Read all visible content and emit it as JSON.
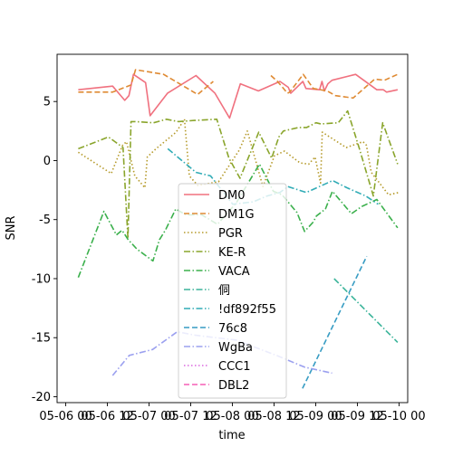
{
  "chart_data": {
    "type": "line",
    "title": "",
    "xlabel": "time",
    "ylabel": "SNR",
    "x_tick_labels": [
      "05-06 00",
      "05-06 12",
      "05-07 00",
      "05-07 12",
      "05-08 00",
      "05-08 12",
      "05-09 00",
      "05-09 12",
      "05-10 00"
    ],
    "x_tick_values": [
      0,
      12,
      24,
      36,
      48,
      60,
      72,
      84,
      96
    ],
    "y_tick_labels": [
      "-20",
      "-15",
      "-10",
      "-5",
      "0",
      "5"
    ],
    "y_tick_values": [
      -20,
      -15,
      -10,
      -5,
      0,
      5
    ],
    "xlim": [
      -2.5,
      98.5
    ],
    "ylim": [
      -20.5,
      9.0
    ],
    "x_unit": "hours since 05-06 00",
    "legend_position": "lower center",
    "series": [
      {
        "name": "DM0",
        "color": "#f0717f",
        "dash": "solid",
        "x": [
          3.6,
          13.5,
          17.0,
          18.2,
          19.5,
          23.0,
          24.3,
          29.3,
          37.5,
          43.0,
          47.2,
          50.3,
          55.5,
          61.7,
          64.1,
          64.8,
          68.3,
          69.2,
          73.1,
          73.8,
          74.5,
          75.5,
          76.7,
          83.5,
          89.6,
          91.5,
          92.4,
          95.6
        ],
        "y": [
          6.0,
          6.3,
          5.1,
          5.5,
          7.3,
          6.6,
          3.8,
          5.7,
          7.2,
          5.7,
          3.6,
          6.5,
          5.9,
          6.7,
          6.2,
          5.7,
          6.7,
          6.1,
          6.0,
          6.7,
          5.9,
          6.5,
          6.8,
          7.3,
          6.0,
          6.0,
          5.8,
          6.0
        ]
      },
      {
        "name": "DM1G",
        "color": "#df8a33",
        "dash": "dash",
        "x": [
          3.6,
          13.5,
          18.8,
          20.1,
          28.2,
          38.0,
          42.5,
          59.1,
          61.0,
          63.9,
          64.5,
          68.4,
          71.3,
          75.3,
          77.7,
          82.8,
          89.0,
          91.8,
          95.6
        ],
        "y": [
          5.8,
          5.8,
          6.4,
          7.7,
          7.3,
          5.6,
          6.7,
          7.2,
          6.7,
          5.7,
          5.8,
          7.3,
          6.1,
          5.9,
          5.5,
          5.3,
          6.9,
          6.8,
          7.3
        ],
        "segments": [
          [
            0,
            6
          ],
          [
            7,
            18
          ]
        ]
      },
      {
        "name": "PGR",
        "color": "#b59a2a",
        "dash": "dot",
        "x": [
          3.6,
          13.1,
          15.0,
          16.4,
          17.5,
          19.9,
          22.8,
          23.5,
          26.0,
          31.8,
          34.2,
          35.6,
          38.0,
          44.0,
          50.0,
          52.3,
          56.8,
          60.1,
          63.0,
          67.5,
          70.0,
          71.8,
          73.4,
          73.9,
          80.8,
          85.6,
          86.6,
          88.0,
          93.0,
          96.0
        ],
        "y": [
          0.7,
          -1.1,
          0.3,
          1.3,
          1.6,
          -1.3,
          -2.3,
          0.3,
          1.0,
          2.4,
          3.5,
          -1.3,
          -2.1,
          -1.8,
          0.9,
          2.5,
          -2.2,
          0.4,
          0.8,
          -0.2,
          -0.3,
          0.3,
          -1.9,
          2.4,
          1.1,
          1.6,
          1.3,
          -1.0,
          -2.9,
          -2.7
        ]
      },
      {
        "name": "KE-R",
        "color": "#8aa52c",
        "dash": "dashdot",
        "x": [
          3.6,
          12.3,
          16.5,
          17.9,
          18.8,
          19.9,
          25.3,
          29.0,
          32.4,
          37.1,
          43.5,
          47.0,
          50.2,
          55.6,
          59.3,
          61.4,
          62.7,
          67.1,
          69.4,
          72.1,
          73.5,
          78.5,
          81.2,
          84.6,
          88.6,
          91.3,
          95.6
        ],
        "y": [
          1.0,
          2.0,
          1.1,
          -6.6,
          3.3,
          3.3,
          3.2,
          3.5,
          3.3,
          3.4,
          3.5,
          0.2,
          -1.5,
          2.4,
          0.2,
          2.0,
          2.5,
          2.8,
          2.8,
          3.2,
          3.1,
          3.2,
          4.2,
          1.0,
          -3.0,
          3.2,
          -0.3
        ]
      },
      {
        "name": "VACA",
        "color": "#3bb04c",
        "dash": "dashdot",
        "x": [
          3.6,
          11.0,
          14.6,
          16.2,
          18.0,
          20.5,
          25.1,
          27.0,
          28.7,
          31.7,
          34.6,
          39.2,
          43.7,
          49.1,
          55.8,
          59.8,
          62.3,
          66.6,
          68.8,
          71.3,
          72.2,
          74.8,
          76.8,
          82.3,
          85.2,
          89.6,
          93.6,
          95.6
        ],
        "y": [
          -9.9,
          -4.3,
          -6.3,
          -5.9,
          -6.7,
          -7.5,
          -8.5,
          -6.7,
          -5.9,
          -4.1,
          -4.6,
          -4.6,
          -5.4,
          -3.6,
          -0.3,
          -2.6,
          -2.9,
          -4.4,
          -6.0,
          -5.2,
          -4.7,
          -4.1,
          -2.6,
          -4.5,
          -3.9,
          -3.3,
          -4.9,
          -5.7
        ]
      },
      {
        "name": "侗",
        "color": "#3bb49a",
        "dash": "dashdot",
        "x": [
          77.3,
          95.6
        ],
        "y": [
          -10.0,
          -15.4
        ]
      },
      {
        "name": "!df892f55",
        "color": "#31acb6",
        "dash": "dashdot",
        "x": [
          29.4,
          37.5,
          41.7,
          48.1,
          54.0,
          58.0,
          61.7,
          64.0,
          69.3,
          76.9,
          81.0,
          86.4,
          90.0
        ],
        "y": [
          1.0,
          -1.0,
          -1.3,
          -3.7,
          -3.5,
          -3.0,
          -2.7,
          -2.2,
          -2.7,
          -1.7,
          -2.3,
          -3.0,
          -3.7
        ]
      },
      {
        "name": "76c8",
        "color": "#379cc3",
        "dash": "dash",
        "x": [
          68.2,
          86.7
        ],
        "y": [
          -19.3,
          -8.1
        ]
      },
      {
        "name": "WgBa",
        "color": "#9ba0ef",
        "dash": "dashdot",
        "x": [
          13.5,
          18.3,
          25.0,
          32.1,
          37.5,
          49.0,
          60.7,
          68.8,
          76.7
        ],
        "y": [
          -18.2,
          -16.5,
          -16.0,
          -14.5,
          -14.8,
          -15.2,
          -16.5,
          -17.5,
          -18.0
        ]
      },
      {
        "name": "CCC1",
        "color": "#db68df",
        "dash": "dot",
        "x": [],
        "y": []
      },
      {
        "name": "DBL2",
        "color": "#f55fb6",
        "dash": "dash",
        "x": [],
        "y": []
      }
    ]
  }
}
